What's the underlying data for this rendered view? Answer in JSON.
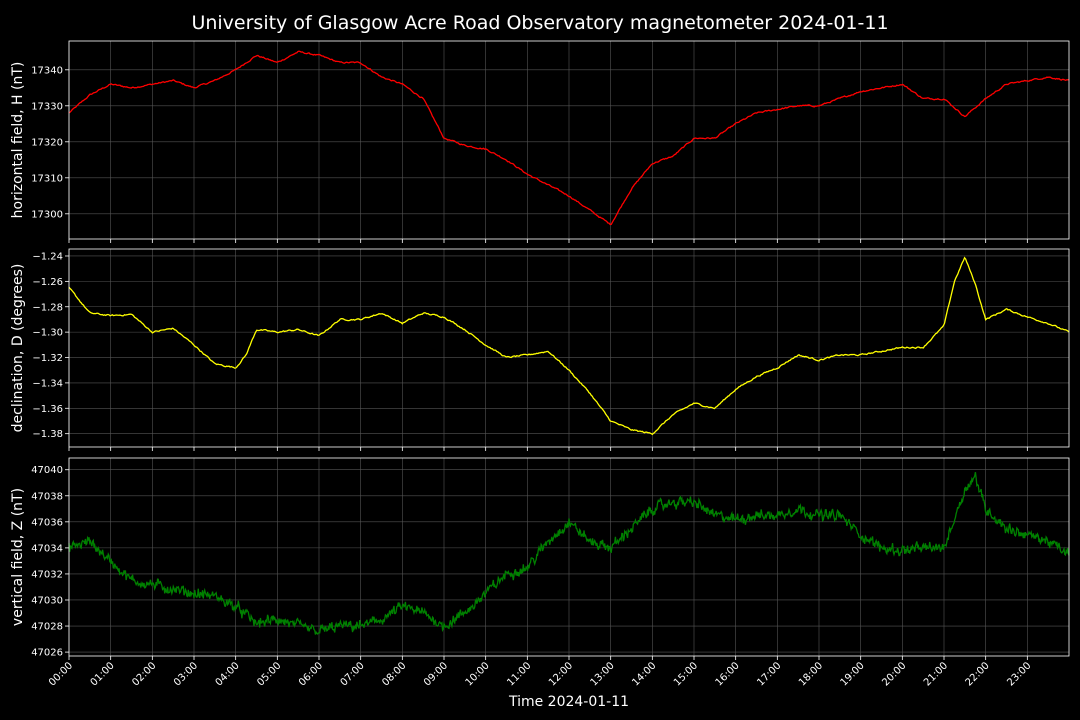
{
  "title": "University of Glasgow Acre Road Observatory magnetometer 2024-01-11",
  "xlabel": "Time 2024-01-11",
  "chart_data": [
    {
      "type": "line",
      "key": "H",
      "ylabel": "horizontal field, H (nT)",
      "color": "#ff0000",
      "xlim": [
        0,
        24
      ],
      "ylim": [
        17293,
        17348
      ],
      "yticks": [
        17300,
        17310,
        17320,
        17330,
        17340
      ],
      "ytick_labels": [
        "17300",
        "17310",
        "17320",
        "17330",
        "17340"
      ],
      "grid": true,
      "x": [
        0,
        0.5,
        1,
        1.5,
        2,
        2.5,
        3,
        3.5,
        4,
        4.5,
        5,
        5.5,
        6,
        6.5,
        7,
        7.5,
        8,
        8.5,
        9,
        9.5,
        10,
        10.5,
        11,
        11.5,
        12,
        12.5,
        13,
        13.5,
        14,
        14.5,
        15,
        15.5,
        16,
        16.5,
        17,
        17.5,
        18,
        18.5,
        19,
        19.5,
        20,
        20.5,
        21,
        21.5,
        22,
        22.5,
        23,
        23.5,
        24
      ],
      "y": [
        17328,
        17333,
        17336,
        17335,
        17336,
        17337,
        17335,
        17337,
        17340,
        17344,
        17342,
        17345,
        17344,
        17342,
        17342,
        17338,
        17336,
        17332,
        17321,
        17319,
        17318,
        17315,
        17311,
        17308,
        17305,
        17301,
        17297,
        17307,
        17314,
        17316,
        17321,
        17321,
        17325,
        17328,
        17329,
        17330,
        17330,
        17332,
        17334,
        17335,
        17336,
        17332,
        17332,
        17327,
        17332,
        17336,
        17337,
        17338,
        17337
      ]
    },
    {
      "type": "line",
      "key": "D",
      "ylabel": "declination, D (degrees)",
      "color": "#ffff00",
      "xlim": [
        0,
        24
      ],
      "ylim": [
        -1.3905,
        -1.2345
      ],
      "yticks": [
        -1.38,
        -1.36,
        -1.34,
        -1.32,
        -1.3,
        -1.28,
        -1.26,
        -1.24
      ],
      "ytick_labels": [
        "−1.38",
        "−1.36",
        "−1.34",
        "−1.32",
        "−1.30",
        "−1.28",
        "−1.26",
        "−1.24"
      ],
      "grid": true,
      "x": [
        0,
        0.5,
        1,
        1.5,
        2,
        2.5,
        3,
        3.5,
        4,
        4.25,
        4.5,
        5,
        5.5,
        6,
        6.5,
        7,
        7.5,
        8,
        8.5,
        9,
        9.5,
        10,
        10.5,
        11,
        11.5,
        12,
        12.5,
        13,
        13.5,
        14,
        14.5,
        15,
        15.5,
        16,
        16.5,
        17,
        17.5,
        18,
        18.5,
        19,
        19.5,
        20,
        20.5,
        21,
        21.25,
        21.5,
        21.75,
        22,
        22.5,
        23,
        23.5,
        24
      ],
      "y": [
        -1.265,
        -1.285,
        -1.287,
        -1.286,
        -1.3,
        -1.297,
        -1.31,
        -1.325,
        -1.328,
        -1.318,
        -1.298,
        -1.3,
        -1.298,
        -1.303,
        -1.29,
        -1.29,
        -1.285,
        -1.293,
        -1.285,
        -1.288,
        -1.298,
        -1.31,
        -1.32,
        -1.318,
        -1.315,
        -1.33,
        -1.348,
        -1.37,
        -1.377,
        -1.38,
        -1.365,
        -1.356,
        -1.36,
        -1.345,
        -1.335,
        -1.328,
        -1.318,
        -1.322,
        -1.318,
        -1.318,
        -1.315,
        -1.312,
        -1.312,
        -1.295,
        -1.26,
        -1.241,
        -1.262,
        -1.29,
        -1.282,
        -1.288,
        -1.293,
        -1.3
      ]
    },
    {
      "type": "line",
      "key": "Z",
      "ylabel": "vertical field, Z (nT)",
      "color": "#008000",
      "xlim": [
        0,
        24
      ],
      "ylim": [
        47025.7,
        47040.9
      ],
      "yticks": [
        47026,
        47028,
        47030,
        47032,
        47034,
        47036,
        47038,
        47040
      ],
      "ytick_labels": [
        "47026",
        "47028",
        "47030",
        "47032",
        "47034",
        "47036",
        "47038",
        "47040"
      ],
      "grid": true,
      "x": [
        0,
        0.5,
        1,
        1.5,
        2,
        2.5,
        3,
        3.5,
        4,
        4.5,
        5,
        5.5,
        6,
        6.5,
        7,
        7.5,
        8,
        8.5,
        9,
        9.5,
        10,
        10.5,
        11,
        11.5,
        12,
        12.5,
        13,
        13.5,
        14,
        14.5,
        15,
        15.5,
        16,
        16.5,
        17,
        17.5,
        18,
        18.5,
        19,
        19.5,
        20,
        20.5,
        21,
        21.5,
        21.75,
        22,
        22.5,
        23,
        23.5,
        24
      ],
      "y": [
        47034,
        47034.5,
        47033,
        47031.5,
        47031.2,
        47030.8,
        47030.5,
        47030.3,
        47029.5,
        47028.2,
        47028.5,
        47028,
        47027.6,
        47028,
        47028,
        47028.5,
        47029.5,
        47029,
        47028,
        47029,
        47030.5,
        47032,
        47032.5,
        47034.5,
        47036,
        47034.5,
        47034,
        47035.5,
        47037,
        47037.5,
        47037.5,
        47036.5,
        47036.2,
        47036.5,
        47036.5,
        47037,
        47036.5,
        47036.5,
        47035,
        47034,
        47033.8,
        47034,
        47034,
        47038.5,
        47039.5,
        47037,
        47035.5,
        47035,
        47034.5,
        47033.5
      ]
    }
  ],
  "xticks": [
    0,
    1,
    2,
    3,
    4,
    5,
    6,
    7,
    8,
    9,
    10,
    11,
    12,
    13,
    14,
    15,
    16,
    17,
    18,
    19,
    20,
    21,
    22,
    23
  ],
  "xtick_labels": [
    "00:00",
    "01:00",
    "02:00",
    "03:00",
    "04:00",
    "05:00",
    "06:00",
    "07:00",
    "08:00",
    "09:00",
    "10:00",
    "11:00",
    "12:00",
    "13:00",
    "14:00",
    "15:00",
    "16:00",
    "17:00",
    "18:00",
    "19:00",
    "20:00",
    "21:00",
    "22:00",
    "23:00"
  ]
}
